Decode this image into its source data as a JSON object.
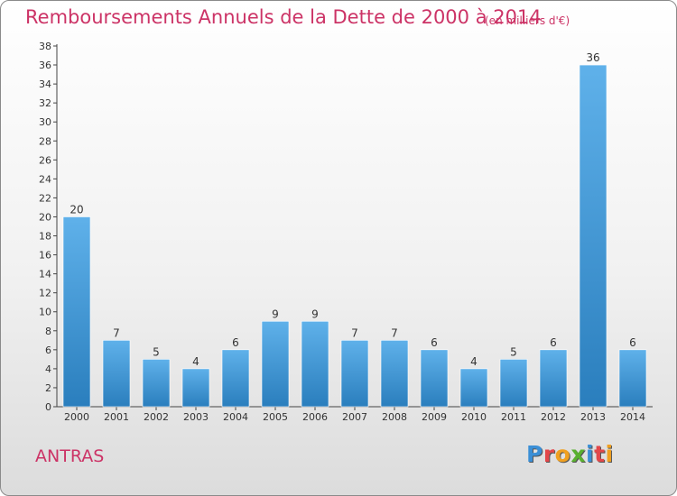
{
  "title": "Remboursements Annuels de la Dette de 2000 à 2014",
  "subtitle": "(en milliers d'€)",
  "commune": "ANTRAS",
  "logo": {
    "letters": [
      "P",
      "r",
      "o",
      "x",
      "i",
      "t",
      "i"
    ],
    "colors": [
      "#3b8fd6",
      "#e2474a",
      "#f0a020",
      "#5ab030",
      "#3b8fd6",
      "#e2474a",
      "#f0a020"
    ]
  },
  "colors": {
    "bar_top": "#5fb1ea",
    "bar_bottom": "#2a7ebd",
    "title": "#cc3366"
  },
  "chart_data": {
    "type": "bar",
    "categories": [
      "2000",
      "2001",
      "2002",
      "2003",
      "2004",
      "2005",
      "2006",
      "2007",
      "2008",
      "2009",
      "2010",
      "2011",
      "2012",
      "2013",
      "2014"
    ],
    "values": [
      20,
      7,
      5,
      4,
      6,
      9,
      9,
      7,
      7,
      6,
      4,
      5,
      6,
      36,
      6
    ],
    "title": "Remboursements Annuels de la Dette de 2000 à 2014",
    "ylim": [
      0,
      38
    ],
    "yticks": [
      0,
      2,
      4,
      6,
      8,
      10,
      12,
      14,
      16,
      18,
      20,
      22,
      24,
      26,
      28,
      30,
      32,
      34,
      36,
      38
    ],
    "grid": false,
    "data_labels": true
  }
}
